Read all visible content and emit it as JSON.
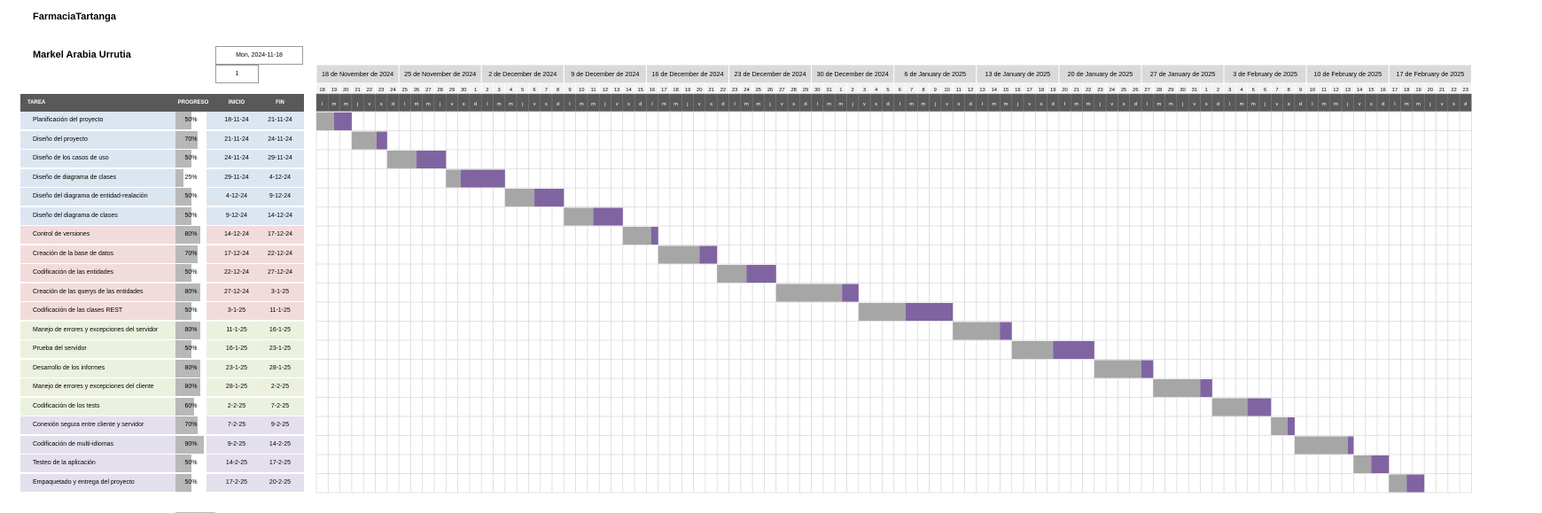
{
  "header": {
    "company": "FarmaciaTartanga",
    "person": "Markel Arabia Urrutia",
    "start_label": "Mon, 2024-11-18",
    "week_value": "1"
  },
  "table": {
    "col_task": "TAREA",
    "col_progress": "PROGRESO",
    "col_start": "INICIO",
    "col_end": "FIN"
  },
  "colors": {
    "group1": "#dce6f1",
    "group2": "#f2dcdb",
    "group3": "#ebf1de",
    "group4": "#e4dfec",
    "done": "#a6a6a6",
    "remaining": "#8064a2",
    "header_dark": "#595959"
  },
  "chart_data": {
    "type": "gantt",
    "timeline_start": "2024-11-18",
    "timeline_end": "2025-02-23",
    "week_labels": [
      "18 de November de 2024",
      "25 de November de 2024",
      "2 de December de 2024",
      "9 de December de 2024",
      "16 de December de 2024",
      "23 de December de 2024",
      "30 de December de 2024",
      "6 de January de 2025",
      "13 de January de 2025",
      "20 de January de 2025",
      "27 de January de 2025",
      "3 de February de 2025",
      "10 de February de 2025",
      "17 de February de 2025"
    ],
    "day_letters": [
      "l",
      "m",
      "m",
      "j",
      "v",
      "s",
      "d"
    ],
    "tasks": [
      {
        "name": "Planificación del proyecto",
        "progress": "50%",
        "start": "18-11-24",
        "end": "21-11-24",
        "group": 1,
        "start_date": "2024-11-18",
        "end_date": "2024-11-21",
        "progress_value": 0.5
      },
      {
        "name": "Diseño del proyecto",
        "progress": "70%",
        "start": "21-11-24",
        "end": "24-11-24",
        "group": 1,
        "start_date": "2024-11-21",
        "end_date": "2024-11-24",
        "progress_value": 0.7
      },
      {
        "name": "Diseño de los casos de uso",
        "progress": "50%",
        "start": "24-11-24",
        "end": "29-11-24",
        "group": 1,
        "start_date": "2024-11-24",
        "end_date": "2024-11-29",
        "progress_value": 0.5
      },
      {
        "name": "Diseño de diagrama de clases",
        "progress": "25%",
        "start": "29-11-24",
        "end": "4-12-24",
        "group": 1,
        "start_date": "2024-11-29",
        "end_date": "2024-12-04",
        "progress_value": 0.25
      },
      {
        "name": "Diseño del diagrama de entidad-realación",
        "progress": "50%",
        "start": "4-12-24",
        "end": "9-12-24",
        "group": 1,
        "start_date": "2024-12-04",
        "end_date": "2024-12-09",
        "progress_value": 0.5
      },
      {
        "name": "Diseño del diagrama de clases",
        "progress": "50%",
        "start": "9-12-24",
        "end": "14-12-24",
        "group": 1,
        "start_date": "2024-12-09",
        "end_date": "2024-12-14",
        "progress_value": 0.5
      },
      {
        "name": "Control de versiones",
        "progress": "80%",
        "start": "14-12-24",
        "end": "17-12-24",
        "group": 2,
        "start_date": "2024-12-14",
        "end_date": "2024-12-17",
        "progress_value": 0.8
      },
      {
        "name": "Creación de la base de datos",
        "progress": "70%",
        "start": "17-12-24",
        "end": "22-12-24",
        "group": 2,
        "start_date": "2024-12-17",
        "end_date": "2024-12-22",
        "progress_value": 0.7
      },
      {
        "name": "Codificación de las entidades",
        "progress": "50%",
        "start": "22-12-24",
        "end": "27-12-24",
        "group": 2,
        "start_date": "2024-12-22",
        "end_date": "2024-12-27",
        "progress_value": 0.5
      },
      {
        "name": "Creación de las querys de las entidades",
        "progress": "80%",
        "start": "27-12-24",
        "end": "3-1-25",
        "group": 2,
        "start_date": "2024-12-27",
        "end_date": "2025-01-03",
        "progress_value": 0.8
      },
      {
        "name": "Codificación de las clases REST",
        "progress": "50%",
        "start": "3-1-25",
        "end": "11-1-25",
        "group": 2,
        "start_date": "2025-01-03",
        "end_date": "2025-01-11",
        "progress_value": 0.5
      },
      {
        "name": "Manejo de errores y excepciones del servidor",
        "progress": "80%",
        "start": "11-1-25",
        "end": "16-1-25",
        "group": 3,
        "start_date": "2025-01-11",
        "end_date": "2025-01-16",
        "progress_value": 0.8
      },
      {
        "name": "Prueba del servidor",
        "progress": "50%",
        "start": "16-1-25",
        "end": "23-1-25",
        "group": 3,
        "start_date": "2025-01-16",
        "end_date": "2025-01-23",
        "progress_value": 0.5
      },
      {
        "name": "Desarrollo de los informes",
        "progress": "80%",
        "start": "23-1-25",
        "end": "28-1-25",
        "group": 3,
        "start_date": "2025-01-23",
        "end_date": "2025-01-28",
        "progress_value": 0.8
      },
      {
        "name": "Manejo de errores y excepciones del cliente",
        "progress": "80%",
        "start": "28-1-25",
        "end": "2-2-25",
        "group": 3,
        "start_date": "2025-01-28",
        "end_date": "2025-02-02",
        "progress_value": 0.8
      },
      {
        "name": "Codificación de los tests",
        "progress": "60%",
        "start": "2-2-25",
        "end": "7-2-25",
        "group": 3,
        "start_date": "2025-02-02",
        "end_date": "2025-02-07",
        "progress_value": 0.6
      },
      {
        "name": "Conexión segura entre cliente y servidor",
        "progress": "70%",
        "start": "7-2-25",
        "end": "9-2-25",
        "group": 4,
        "start_date": "2025-02-07",
        "end_date": "2025-02-09",
        "progress_value": 0.7
      },
      {
        "name": "Codificación de multi-idiomas",
        "progress": "90%",
        "start": "9-2-25",
        "end": "14-2-25",
        "group": 4,
        "start_date": "2025-02-09",
        "end_date": "2025-02-14",
        "progress_value": 0.9
      },
      {
        "name": "Testeo de la aplicación",
        "progress": "50%",
        "start": "14-2-25",
        "end": "17-2-25",
        "group": 4,
        "start_date": "2025-02-14",
        "end_date": "2025-02-17",
        "progress_value": 0.5
      },
      {
        "name": "Empaquetado y entrega del proyecto",
        "progress": "50%",
        "start": "17-2-25",
        "end": "20-2-25",
        "group": 4,
        "start_date": "2025-02-17",
        "end_date": "2025-02-20",
        "progress_value": 0.5
      }
    ]
  }
}
